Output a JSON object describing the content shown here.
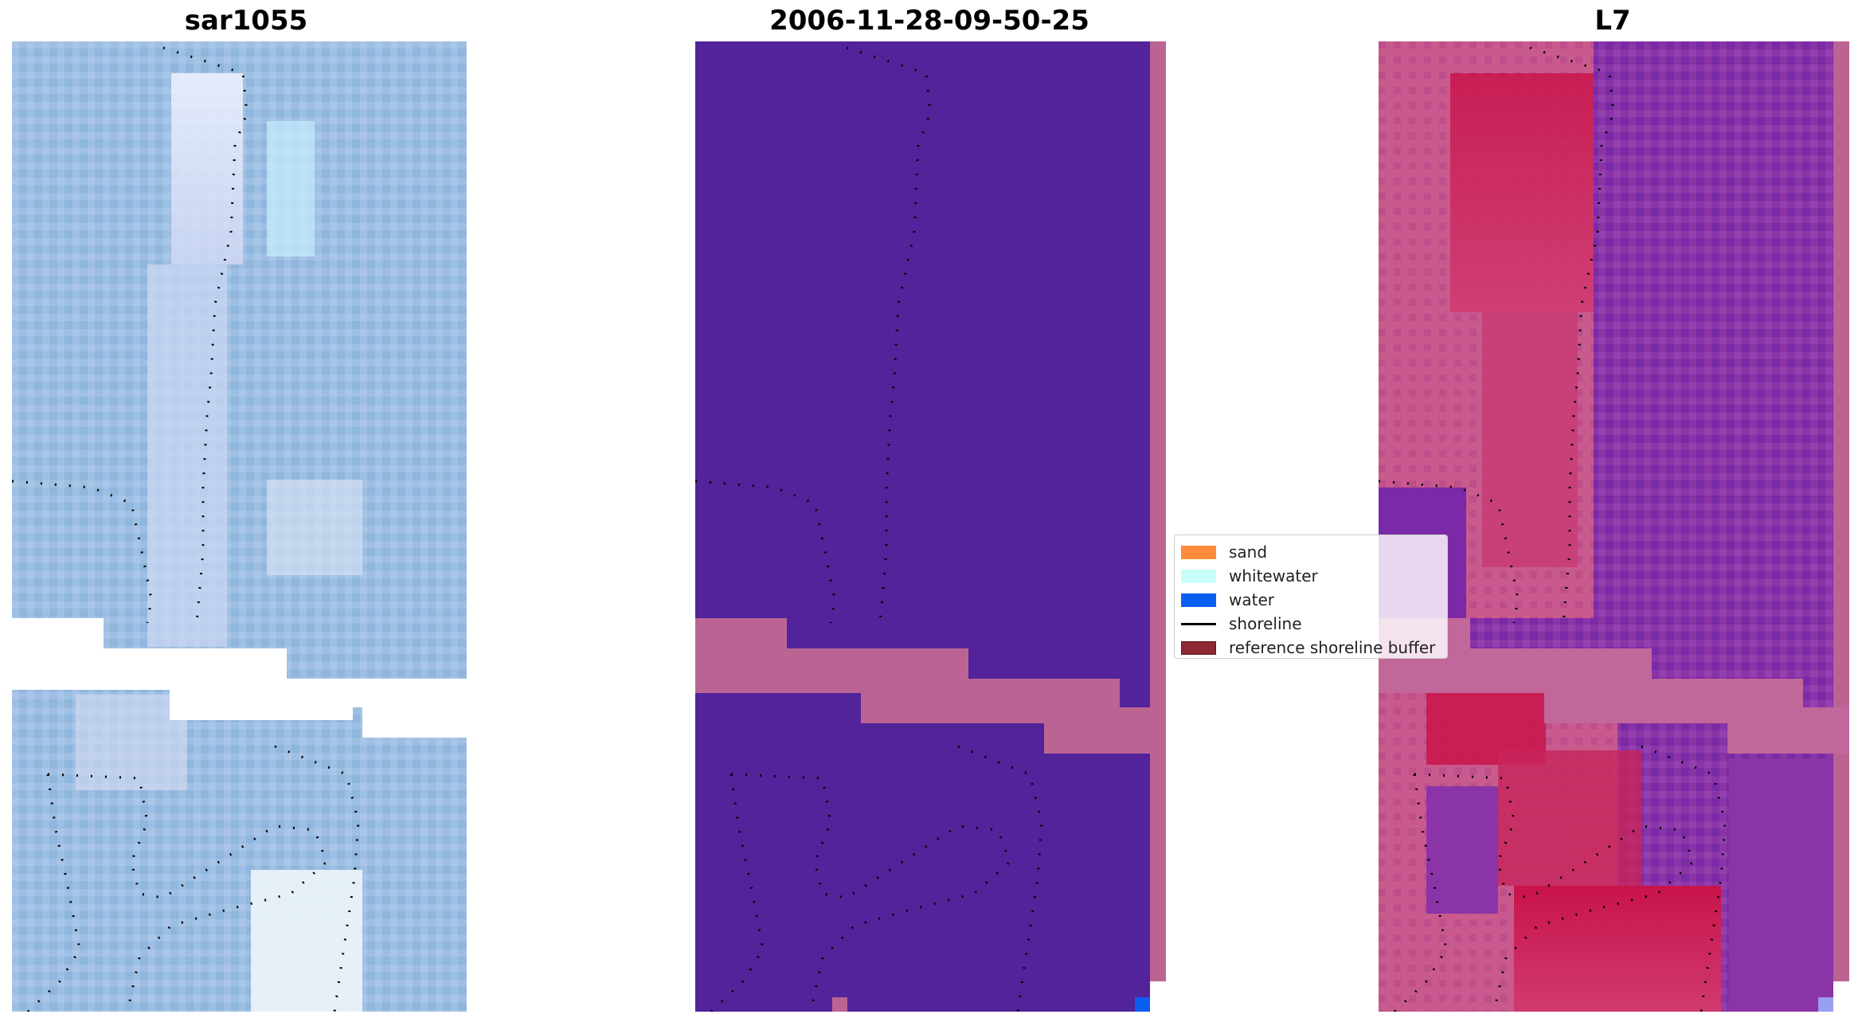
{
  "panels": [
    {
      "title": "sar1055"
    },
    {
      "title": "2006-11-28-09-50-25"
    },
    {
      "title": "L7"
    }
  ],
  "legend": {
    "items": [
      {
        "label": "sand",
        "color": "#ff8c3a",
        "kind": "patch"
      },
      {
        "label": "whitewater",
        "color": "#c8fffb",
        "kind": "patch"
      },
      {
        "label": "water",
        "color": "#0a5ff0",
        "kind": "patch"
      },
      {
        "label": "shoreline",
        "color": "#000000",
        "kind": "line"
      },
      {
        "label": "reference shoreline buffer",
        "color": "#8b2a35",
        "kind": "patch-outline"
      }
    ]
  },
  "colors": {
    "classified_background": "#52239a",
    "nodata_band": "#bb6494",
    "water_pixel": "#0a5ff0",
    "rgb_base": "#9bbde2",
    "index_pink": "#c95a8e",
    "index_red": "#c8144a",
    "index_purple": "#7a2aa6"
  }
}
